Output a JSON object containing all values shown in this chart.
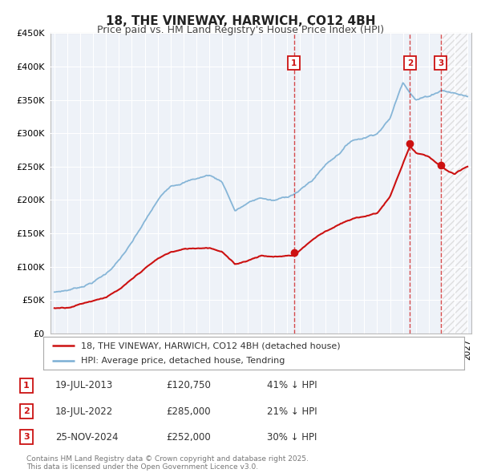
{
  "title": "18, THE VINEWAY, HARWICH, CO12 4BH",
  "subtitle": "Price paid vs. HM Land Registry's House Price Index (HPI)",
  "background_color": "#ffffff",
  "plot_bg_color": "#eef2f8",
  "grid_color": "#ffffff",
  "hpi_color": "#7bafd4",
  "price_color": "#cc1111",
  "ylim": [
    0,
    450000
  ],
  "xlim_start": 1994.7,
  "xlim_end": 2027.3,
  "sale_dates": [
    2013.55,
    2022.54,
    2024.92
  ],
  "sale_prices": [
    120750,
    285000,
    252000
  ],
  "sale_labels": [
    "1",
    "2",
    "3"
  ],
  "legend_entries": [
    "18, THE VINEWAY, HARWICH, CO12 4BH (detached house)",
    "HPI: Average price, detached house, Tendring"
  ],
  "table_rows": [
    [
      "1",
      "19-JUL-2013",
      "£120,750",
      "41% ↓ HPI"
    ],
    [
      "2",
      "18-JUL-2022",
      "£285,000",
      "21% ↓ HPI"
    ],
    [
      "3",
      "25-NOV-2024",
      "£252,000",
      "30% ↓ HPI"
    ]
  ],
  "footnote": "Contains HM Land Registry data © Crown copyright and database right 2025.\nThis data is licensed under the Open Government Licence v3.0.",
  "hpi_data": {
    "years": [
      1995,
      1996,
      1997,
      1998,
      1999,
      2000,
      2001,
      2002,
      2003,
      2004,
      2005,
      2006,
      2007,
      2008,
      2009,
      2010,
      2011,
      2012,
      2013,
      2014,
      2015,
      2016,
      2017,
      2018,
      2019,
      2020,
      2021,
      2022,
      2023,
      2024,
      2025,
      2026,
      2027
    ],
    "values": [
      62000,
      65000,
      70000,
      78000,
      90000,
      110000,
      135000,
      165000,
      195000,
      218000,
      225000,
      230000,
      235000,
      225000,
      182000,
      193000,
      200000,
      195000,
      200000,
      210000,
      225000,
      248000,
      265000,
      285000,
      290000,
      298000,
      320000,
      375000,
      350000,
      355000,
      365000,
      360000,
      355000
    ]
  },
  "price_data": {
    "years": [
      1995,
      1996,
      1997,
      1998,
      1999,
      2000,
      2001,
      2002,
      2003,
      2004,
      2005,
      2006,
      2007,
      2008,
      2009,
      2010,
      2011,
      2012,
      2013.55,
      2014,
      2015,
      2016,
      2017,
      2018,
      2019,
      2020,
      2021,
      2022.54,
      2023,
      2024,
      2024.92,
      2025.5,
      2026,
      2027
    ],
    "values": [
      38000,
      40000,
      46000,
      52000,
      58000,
      68000,
      82000,
      98000,
      112000,
      122000,
      126000,
      128000,
      130000,
      125000,
      105000,
      112000,
      120000,
      118000,
      120750,
      128000,
      145000,
      158000,
      168000,
      175000,
      180000,
      185000,
      210000,
      285000,
      275000,
      268000,
      252000,
      245000,
      240000,
      250000
    ]
  }
}
